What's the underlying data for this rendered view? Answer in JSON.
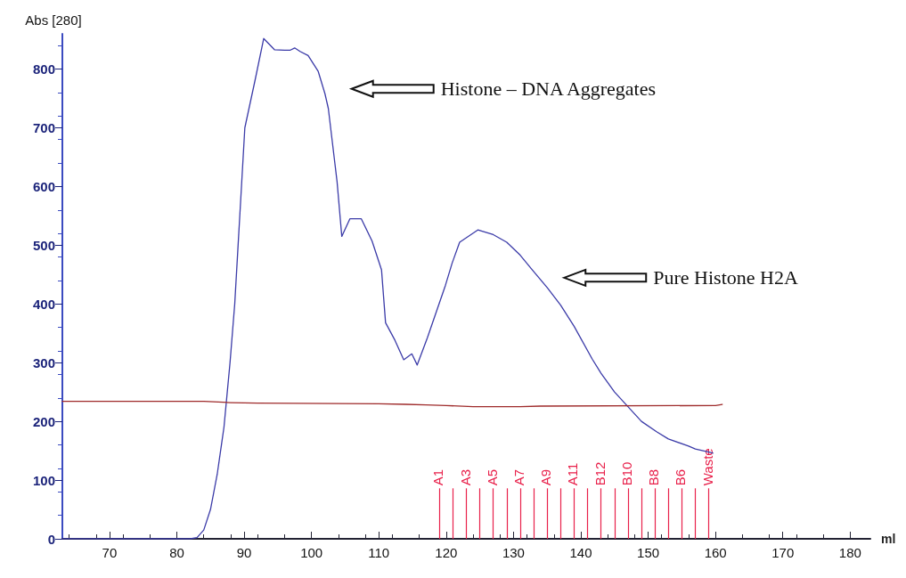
{
  "chart_data": {
    "type": "line",
    "xlabel": "ml",
    "ylabel": "Abs [280]",
    "xlim": [
      63,
      183
    ],
    "xticks": [
      70,
      80,
      90,
      100,
      110,
      120,
      130,
      140,
      150,
      160,
      170,
      180
    ],
    "ylim": [
      0,
      860
    ],
    "yticks": [
      0,
      100,
      200,
      300,
      400,
      500,
      600,
      700,
      800
    ],
    "grid": false,
    "marker": "none",
    "line_style": "solid",
    "series": [
      {
        "color": "#3b3ba8",
        "x": [
          63,
          82,
          83,
          84,
          85,
          86,
          87,
          87.9,
          88.6,
          89.1,
          89.6,
          90.1,
          91.6,
          92.9,
          94.5,
          96,
          96.8,
          97.5,
          98.3,
          99.5,
          101,
          102,
          102.5,
          103.8,
          104.5,
          105.7,
          107.4,
          109,
          110.4,
          111,
          112.4,
          113.7,
          114.9,
          115.7,
          117.2,
          119.9,
          120.9,
          122,
          124.7,
          127,
          129,
          131,
          132.8,
          135,
          137,
          139,
          141.7,
          143,
          145,
          147,
          149,
          151.3,
          153,
          156,
          157,
          159.6
        ],
        "values": [
          0,
          0,
          2,
          15,
          50,
          110,
          190,
          300,
          400,
          500,
          600,
          700,
          780,
          852,
          833,
          832,
          832,
          836,
          830,
          823,
          796,
          758,
          733,
          608,
          515,
          545,
          545,
          507,
          458,
          368,
          338,
          305,
          315,
          296,
          342,
          432,
          470,
          505,
          526,
          518,
          505,
          483,
          458,
          428,
          398,
          362,
          306,
          282,
          250,
          225,
          200,
          182,
          170,
          158,
          153,
          146
        ]
      },
      {
        "color": "#9e2a2a",
        "x": [
          63,
          84,
          88,
          92,
          110,
          114,
          117,
          120,
          124,
          131,
          134,
          160,
          161
        ],
        "values": [
          234,
          234,
          232,
          231,
          230,
          229,
          228,
          227,
          225,
          225,
          226,
          227,
          229
        ]
      }
    ],
    "ref_lines": [
      {
        "axis": "x",
        "value": 119,
        "label": "A1",
        "color": "#e8204a"
      },
      {
        "axis": "x",
        "value": 121,
        "label": null,
        "color": "#e8204a"
      },
      {
        "axis": "x",
        "value": 123,
        "label": "A3",
        "color": "#e8204a"
      },
      {
        "axis": "x",
        "value": 125,
        "label": null,
        "color": "#e8204a"
      },
      {
        "axis": "x",
        "value": 127,
        "label": "A5",
        "color": "#e8204a"
      },
      {
        "axis": "x",
        "value": 129,
        "label": null,
        "color": "#e8204a"
      },
      {
        "axis": "x",
        "value": 131,
        "label": "A7",
        "color": "#e8204a"
      },
      {
        "axis": "x",
        "value": 133,
        "label": null,
        "color": "#e8204a"
      },
      {
        "axis": "x",
        "value": 135,
        "label": "A9",
        "color": "#e8204a"
      },
      {
        "axis": "x",
        "value": 137,
        "label": null,
        "color": "#e8204a"
      },
      {
        "axis": "x",
        "value": 139,
        "label": "A11",
        "color": "#e8204a"
      },
      {
        "axis": "x",
        "value": 141,
        "label": null,
        "color": "#e8204a"
      },
      {
        "axis": "x",
        "value": 143,
        "label": "B12",
        "color": "#e8204a"
      },
      {
        "axis": "x",
        "value": 145,
        "label": null,
        "color": "#e8204a"
      },
      {
        "axis": "x",
        "value": 147,
        "label": "B10",
        "color": "#e8204a"
      },
      {
        "axis": "x",
        "value": 149,
        "label": null,
        "color": "#e8204a"
      },
      {
        "axis": "x",
        "value": 151,
        "label": "B8",
        "color": "#e8204a"
      },
      {
        "axis": "x",
        "value": 153,
        "label": null,
        "color": "#e8204a"
      },
      {
        "axis": "x",
        "value": 155,
        "label": "B6",
        "color": "#e8204a"
      },
      {
        "axis": "x",
        "value": 157,
        "label": null,
        "color": "#e8204a"
      },
      {
        "axis": "x",
        "value": 159,
        "label": "Waste",
        "color": "#e8204a"
      }
    ],
    "annotations": [
      "Histone – DNA Aggregates",
      "Pure Histone H2A"
    ]
  }
}
